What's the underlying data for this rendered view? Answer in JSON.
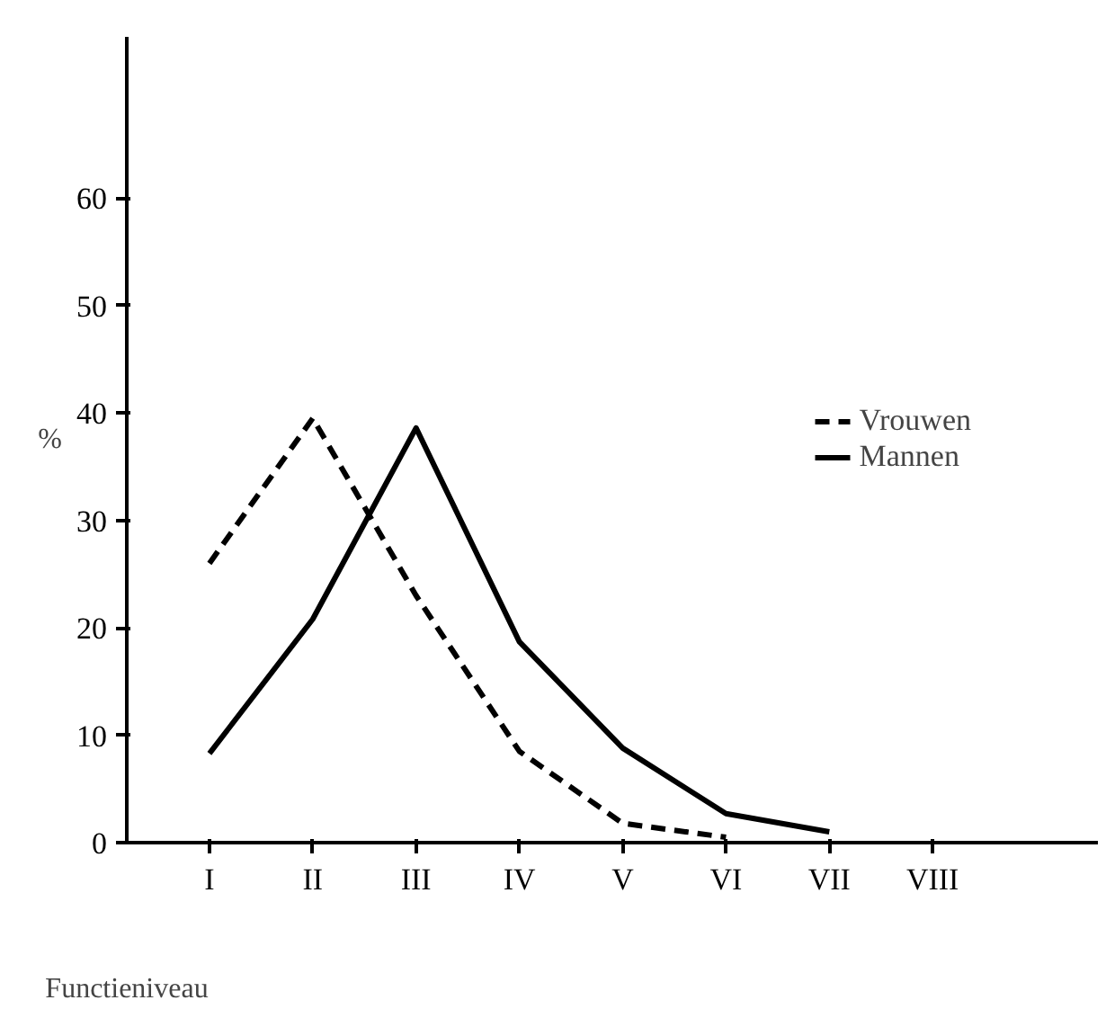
{
  "chart_data": {
    "type": "line",
    "xlabel": "Functieniveau",
    "ylabel": "%",
    "categories": [
      "I",
      "II",
      "III",
      "IV",
      "V",
      "VI",
      "VII",
      "VIII"
    ],
    "series": [
      {
        "name": "Vrouwen",
        "color": "#000000",
        "line_style": "dashed",
        "values": [
          26,
          39.5,
          23,
          8.5,
          1.8,
          0.5,
          null,
          null
        ]
      },
      {
        "name": "Mannen",
        "color": "#000000",
        "line_style": "solid",
        "values": [
          8.3,
          20.8,
          38.6,
          18.7,
          8.8,
          2.7,
          1.0,
          null
        ]
      }
    ],
    "ylim": [
      0,
      75
    ],
    "yticks": [
      0,
      10,
      20,
      30,
      40,
      50,
      60
    ],
    "grid": false,
    "legend": "right",
    "marker": "none"
  }
}
